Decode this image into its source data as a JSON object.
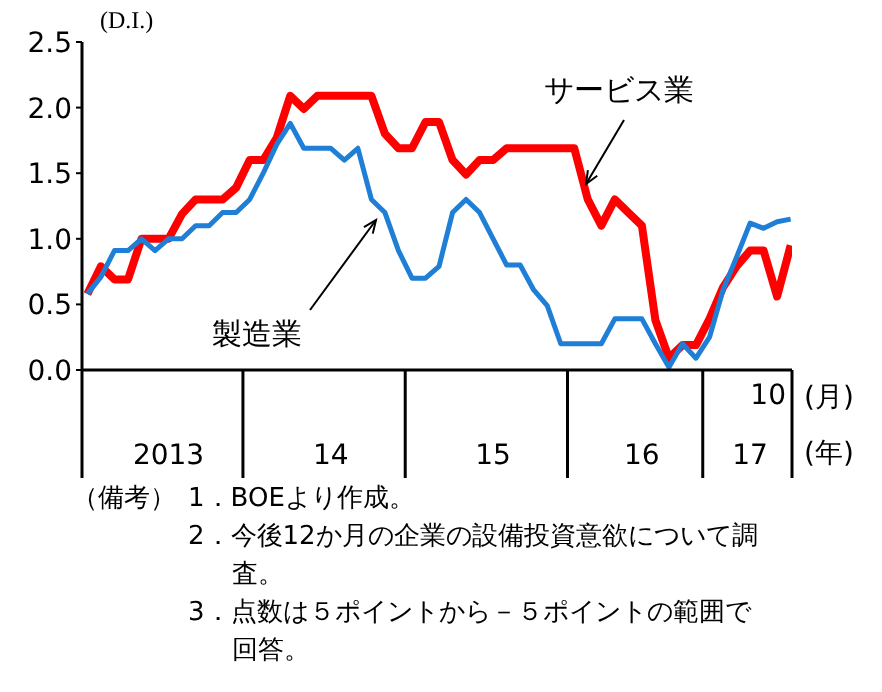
{
  "chart_data": {
    "type": "line",
    "ylabel": "(D.I.)",
    "categories": [
      null,
      null,
      null,
      null,
      null,
      null,
      "2013",
      null,
      null,
      null,
      null,
      null,
      null,
      null,
      null,
      null,
      null,
      null,
      "14",
      null,
      null,
      null,
      null,
      null,
      null,
      null,
      null,
      null,
      null,
      null,
      "15",
      null,
      null,
      null,
      null,
      null,
      null,
      null,
      null,
      null,
      null,
      "16",
      null,
      null,
      null,
      null,
      null,
      null,
      null,
      "17",
      null,
      null,
      null
    ],
    "series": [
      {
        "name": "サービス業",
        "color": "#ff0000",
        "values": [
          0.58,
          0.79,
          0.69,
          0.69,
          1.0,
          1.0,
          1.0,
          1.19,
          1.3,
          1.3,
          1.3,
          1.39,
          1.6,
          1.6,
          1.77,
          2.09,
          1.99,
          2.09,
          2.09,
          2.09,
          2.09,
          2.09,
          1.8,
          1.69,
          1.69,
          1.89,
          1.89,
          1.6,
          1.49,
          1.6,
          1.6,
          1.69,
          1.69,
          1.69,
          1.69,
          1.69,
          1.69,
          1.3,
          1.1,
          1.3,
          1.2,
          1.1,
          0.38,
          0.09,
          0.19,
          0.19,
          0.39,
          0.63,
          0.79,
          0.91,
          0.91,
          0.56,
          0.95
        ]
      },
      {
        "name": "製造業",
        "color": "#1f7fd6",
        "values": [
          0.58,
          0.71,
          0.91,
          0.91,
          1.0,
          0.91,
          1.0,
          1.0,
          1.1,
          1.1,
          1.2,
          1.2,
          1.3,
          1.5,
          1.72,
          1.88,
          1.69,
          1.69,
          1.69,
          1.6,
          1.69,
          1.3,
          1.2,
          0.91,
          0.7,
          0.7,
          0.79,
          1.2,
          1.3,
          1.2,
          1.0,
          0.8,
          0.8,
          0.61,
          0.49,
          0.2,
          0.2,
          0.2,
          0.2,
          0.39,
          0.39,
          0.39,
          0.2,
          0.02,
          0.2,
          0.09,
          0.25,
          0.61,
          0.86,
          1.12,
          1.08,
          1.13,
          1.15
        ]
      }
    ],
    "ylim": [
      0,
      2.5
    ],
    "yticks": [
      {
        "value": 0,
        "label": "0.0"
      },
      {
        "value": 0.5,
        "label": "0.5"
      },
      {
        "value": 1,
        "label": "1.0"
      },
      {
        "value": 1.5,
        "label": "1.5"
      },
      {
        "value": 2,
        "label": "2.0"
      },
      {
        "value": 2.5,
        "label": "2.5"
      }
    ],
    "grid": false,
    "legend": false,
    "marker": "none",
    "line_style": "solid",
    "annotations": [
      "10",
      "(月)",
      "(年)",
      "（備考）",
      "1．BOEより作成。",
      "2．今後12か月の企業の設備投資意欲について調査。",
      "3．点数は５ポイントから－５ポイントの範囲で回答。"
    ]
  }
}
